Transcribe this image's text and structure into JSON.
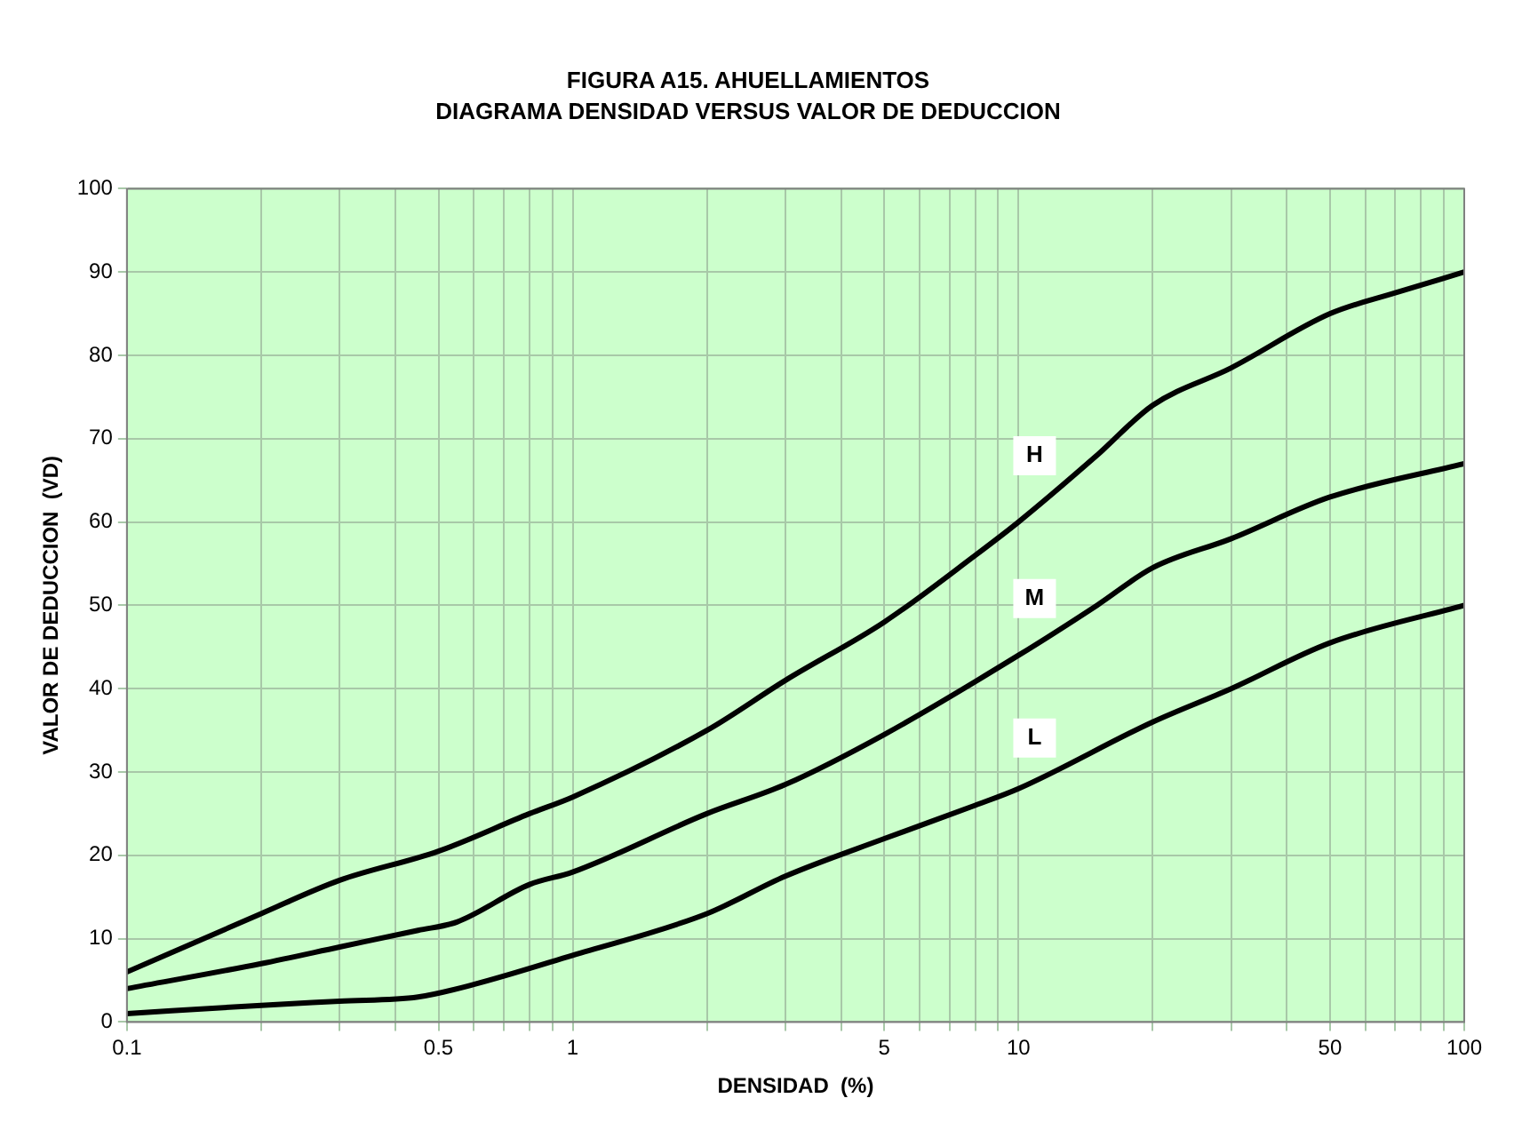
{
  "chart_data": {
    "type": "line",
    "title": "FIGURA A15. AHUELLAMIENTOS",
    "subtitle": "DIAGRAMA DENSIDAD VERSUS VALOR DE DEDUCCION",
    "xlabel": "DENSIDAD  (%)",
    "ylabel": "VALOR DE DEDUCCION  (VD)",
    "log": "x",
    "grid": true,
    "legend": false,
    "marker": "none",
    "line_style": "solid",
    "xlim": [
      0.1,
      100
    ],
    "ylim": [
      0,
      100
    ],
    "xticks": [
      0.1,
      {
        "value": 0.2,
        "label": null
      },
      {
        "value": 0.3,
        "label": null
      },
      {
        "value": 0.4,
        "label": null
      },
      0.5,
      {
        "value": 0.6,
        "label": null
      },
      {
        "value": 0.7,
        "label": null
      },
      {
        "value": 0.8,
        "label": null
      },
      {
        "value": 0.9,
        "label": null
      },
      1,
      {
        "value": 2,
        "label": null
      },
      {
        "value": 3,
        "label": null
      },
      {
        "value": 4,
        "label": null
      },
      5,
      {
        "value": 6,
        "label": null
      },
      {
        "value": 7,
        "label": null
      },
      {
        "value": 8,
        "label": null
      },
      {
        "value": 9,
        "label": null
      },
      10,
      {
        "value": 20,
        "label": null
      },
      {
        "value": 30,
        "label": null
      },
      {
        "value": 40,
        "label": null
      },
      50,
      {
        "value": 60,
        "label": null
      },
      {
        "value": 70,
        "label": null
      },
      {
        "value": 80,
        "label": null
      },
      {
        "value": 90,
        "label": null
      },
      100
    ],
    "yticks": [
      0,
      10,
      20,
      30,
      40,
      50,
      60,
      70,
      80,
      90,
      100
    ],
    "series": [
      {
        "name": "H",
        "color": "#000000",
        "x": [
          0.1,
          0.2,
          0.3,
          0.5,
          0.8,
          1,
          2,
          3,
          5,
          8,
          10,
          15,
          20,
          30,
          50,
          70,
          100
        ],
        "values": [
          6,
          13,
          17,
          20.5,
          25,
          27,
          35,
          41,
          48,
          56,
          60,
          68,
          74,
          78.5,
          85,
          87.5,
          90
        ]
      },
      {
        "name": "M",
        "color": "#000000",
        "x": [
          0.1,
          0.2,
          0.3,
          0.45,
          0.55,
          0.8,
          1,
          2,
          3,
          5,
          10,
          15,
          20,
          30,
          50,
          100
        ],
        "values": [
          4,
          7,
          9,
          11,
          12,
          16.5,
          18,
          25,
          28.5,
          34.5,
          44,
          50,
          54.5,
          58,
          63,
          67
        ]
      },
      {
        "name": "L",
        "color": "#000000",
        "x": [
          0.1,
          0.2,
          0.3,
          0.45,
          0.6,
          1,
          2,
          3,
          5,
          8,
          10,
          20,
          30,
          50,
          100
        ],
        "values": [
          1,
          2,
          2.5,
          3,
          4.5,
          8,
          13,
          17.5,
          22,
          26,
          28,
          36,
          40,
          45.5,
          50
        ]
      }
    ]
  }
}
